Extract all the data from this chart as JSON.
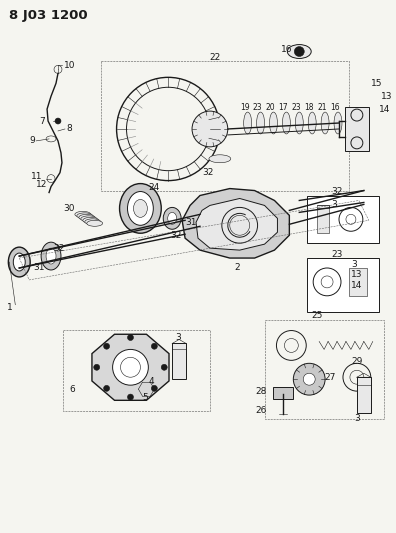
{
  "title": "8 J03 1200",
  "bg_color": "#f5f5f0",
  "line_color": "#1a1a1a",
  "gray_fill": "#c8c8c8",
  "light_gray": "#e8e8e8",
  "title_fontsize": 10,
  "label_fontsize": 6.5,
  "fig_width": 3.96,
  "fig_height": 5.33,
  "dpi": 100
}
